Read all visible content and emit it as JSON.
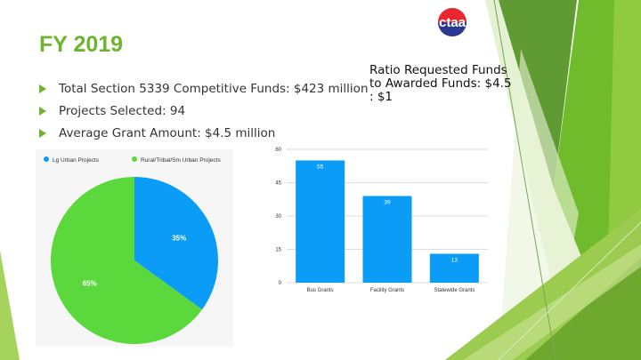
{
  "slide": {
    "title": "FY 2019",
    "ratio_text": "Ratio Requested Funds to Awarded Funds: $4.5 : $1",
    "bullets": [
      "Total Section 5339 Competitive Funds: $423 million",
      "Projects Selected: 94",
      "Average Grant Amount: $4.5 million"
    ],
    "logo_text": "ctaa",
    "colors": {
      "accent": "#6eb52f",
      "logo_red": "#e8262c",
      "logo_blue": "#2b3990",
      "blue": "#0a9cf6",
      "green": "#5bd93c"
    }
  },
  "chart_data": [
    {
      "type": "pie",
      "labels": [
        "Lg Urban Projects",
        "Rural/Tribal/Sm Urban Projects"
      ],
      "values": [
        35,
        65
      ],
      "value_labels": [
        "35%",
        "65%"
      ],
      "colors": [
        "#0a9cf6",
        "#5bd93c"
      ],
      "legend": "top-left"
    },
    {
      "type": "bar",
      "categories": [
        "Bus Grants",
        "Facility Grants",
        "Statewide Grants"
      ],
      "values": [
        55,
        39,
        13
      ],
      "ylim": [
        0,
        60
      ],
      "yticks": [
        0,
        15,
        30,
        45,
        60
      ],
      "grid": true,
      "color": "#0a9cf6"
    }
  ]
}
